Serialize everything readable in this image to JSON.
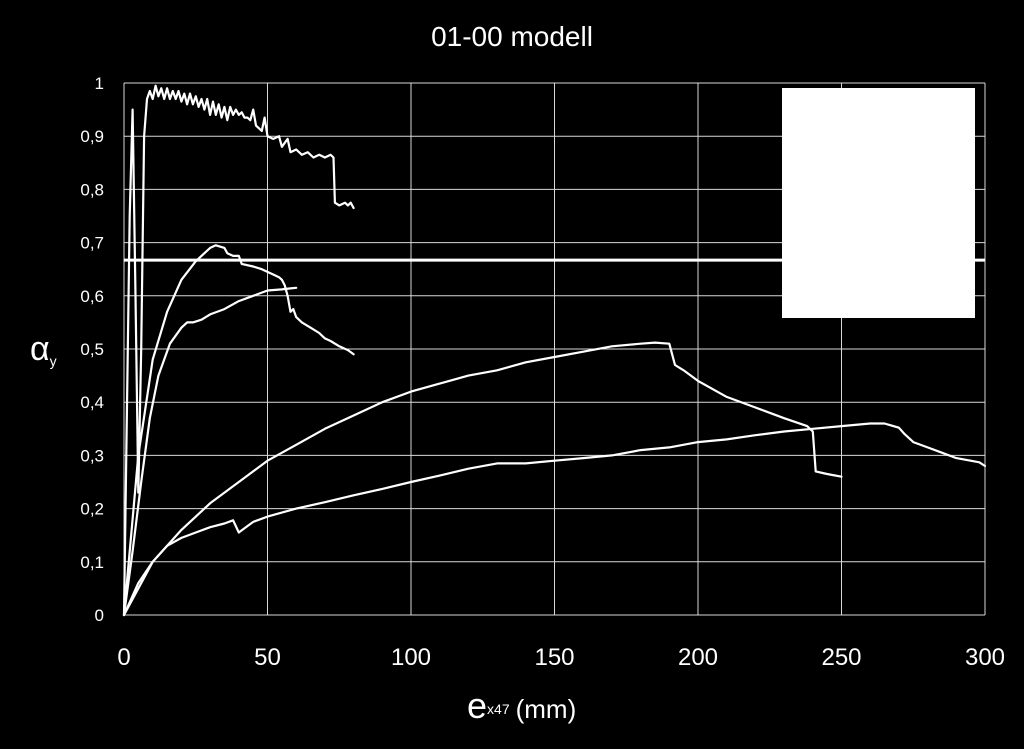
{
  "colors": {
    "background": "#000000",
    "foreground": "#ffffff",
    "grid": "#d9d9d9"
  },
  "chart_data": {
    "type": "line",
    "title": "01-00 modell",
    "xlabel": {
      "main": "e",
      "sub": "x47",
      "unit": "(mm)"
    },
    "ylabel": {
      "main": "α",
      "sub": "y"
    },
    "xlim": [
      0,
      300
    ],
    "ylim": [
      0,
      1
    ],
    "xticks": [
      0,
      50,
      100,
      150,
      200,
      250,
      300
    ],
    "yticks": [
      0,
      0.1,
      0.2,
      0.3,
      0.4,
      0.5,
      0.6,
      0.7,
      0.8,
      0.9,
      1
    ],
    "ytick_labels": [
      "0",
      "0,1",
      "0,2",
      "0,3",
      "0,4",
      "0,5",
      "0,6",
      "0,7",
      "0,8",
      "0,9",
      "1"
    ],
    "grid": true,
    "legend": "top-right (blank box)",
    "reference_line": {
      "y": 0.667
    },
    "series": [
      {
        "points": [
          [
            0,
            0
          ],
          [
            2,
            0.75
          ],
          [
            3,
            0.95
          ],
          [
            4,
            0.6
          ],
          [
            5,
            0.23
          ],
          [
            6,
            0.5
          ],
          [
            7,
            0.9
          ],
          [
            8,
            0.97
          ],
          [
            9,
            0.985
          ],
          [
            10,
            0.97
          ],
          [
            11,
            0.995
          ],
          [
            12,
            0.975
          ],
          [
            13,
            0.99
          ],
          [
            14,
            0.97
          ],
          [
            15,
            0.99
          ],
          [
            16,
            0.97
          ],
          [
            17,
            0.985
          ],
          [
            18,
            0.97
          ],
          [
            19,
            0.985
          ],
          [
            20,
            0.965
          ],
          [
            21,
            0.98
          ],
          [
            22,
            0.96
          ],
          [
            23,
            0.98
          ],
          [
            24,
            0.96
          ],
          [
            25,
            0.975
          ],
          [
            26,
            0.955
          ],
          [
            27,
            0.97
          ],
          [
            28,
            0.95
          ],
          [
            29,
            0.97
          ],
          [
            30,
            0.94
          ],
          [
            31,
            0.965
          ],
          [
            32,
            0.94
          ],
          [
            33,
            0.96
          ],
          [
            34,
            0.935
          ],
          [
            35,
            0.955
          ],
          [
            36,
            0.93
          ],
          [
            37,
            0.955
          ],
          [
            38,
            0.94
          ],
          [
            39,
            0.95
          ],
          [
            40,
            0.94
          ],
          [
            41,
            0.945
          ],
          [
            42,
            0.935
          ],
          [
            43,
            0.935
          ],
          [
            44,
            0.93
          ],
          [
            45,
            0.95
          ],
          [
            46,
            0.92
          ],
          [
            48,
            0.91
          ],
          [
            49,
            0.935
          ],
          [
            50,
            0.9
          ],
          [
            52,
            0.895
          ],
          [
            54,
            0.9
          ],
          [
            55,
            0.88
          ],
          [
            57,
            0.895
          ],
          [
            58,
            0.87
          ],
          [
            60,
            0.875
          ],
          [
            62,
            0.865
          ],
          [
            64,
            0.87
          ],
          [
            66,
            0.86
          ],
          [
            68,
            0.865
          ],
          [
            70,
            0.86
          ],
          [
            72,
            0.865
          ],
          [
            73,
            0.86
          ],
          [
            73.5,
            0.775
          ],
          [
            75,
            0.77
          ],
          [
            77,
            0.775
          ],
          [
            78,
            0.77
          ],
          [
            79,
            0.775
          ],
          [
            80,
            0.765
          ]
        ]
      },
      {
        "points": [
          [
            0,
            0
          ],
          [
            5,
            0.3
          ],
          [
            10,
            0.48
          ],
          [
            15,
            0.57
          ],
          [
            20,
            0.63
          ],
          [
            25,
            0.665
          ],
          [
            30,
            0.69
          ],
          [
            32,
            0.695
          ],
          [
            35,
            0.69
          ],
          [
            36,
            0.68
          ],
          [
            38,
            0.675
          ],
          [
            40,
            0.675
          ],
          [
            41,
            0.66
          ],
          [
            45,
            0.655
          ],
          [
            48,
            0.65
          ],
          [
            50,
            0.645
          ],
          [
            52,
            0.64
          ],
          [
            54,
            0.635
          ],
          [
            55,
            0.63
          ],
          [
            56,
            0.62
          ],
          [
            57,
            0.6
          ],
          [
            58,
            0.57
          ],
          [
            59,
            0.575
          ],
          [
            60,
            0.56
          ],
          [
            62,
            0.55
          ],
          [
            65,
            0.54
          ],
          [
            68,
            0.53
          ],
          [
            70,
            0.52
          ],
          [
            72,
            0.515
          ],
          [
            75,
            0.505
          ],
          [
            78,
            0.498
          ],
          [
            80,
            0.49
          ]
        ]
      },
      {
        "points": [
          [
            0,
            0
          ],
          [
            3,
            0.12
          ],
          [
            6,
            0.25
          ],
          [
            9,
            0.37
          ],
          [
            12,
            0.45
          ],
          [
            16,
            0.51
          ],
          [
            20,
            0.54
          ],
          [
            22,
            0.55
          ],
          [
            24,
            0.55
          ],
          [
            27,
            0.555
          ],
          [
            30,
            0.565
          ],
          [
            35,
            0.575
          ],
          [
            40,
            0.59
          ],
          [
            45,
            0.6
          ],
          [
            50,
            0.61
          ],
          [
            55,
            0.612
          ],
          [
            58,
            0.614
          ],
          [
            60,
            0.615
          ]
        ]
      },
      {
        "points": [
          [
            0,
            0
          ],
          [
            10,
            0.1
          ],
          [
            20,
            0.16
          ],
          [
            30,
            0.21
          ],
          [
            40,
            0.25
          ],
          [
            50,
            0.29
          ],
          [
            60,
            0.32
          ],
          [
            70,
            0.35
          ],
          [
            80,
            0.375
          ],
          [
            90,
            0.4
          ],
          [
            100,
            0.42
          ],
          [
            110,
            0.435
          ],
          [
            120,
            0.45
          ],
          [
            130,
            0.46
          ],
          [
            140,
            0.475
          ],
          [
            150,
            0.485
          ],
          [
            160,
            0.495
          ],
          [
            170,
            0.505
          ],
          [
            180,
            0.51
          ],
          [
            185,
            0.512
          ],
          [
            190,
            0.51
          ],
          [
            192,
            0.47
          ],
          [
            195,
            0.46
          ],
          [
            200,
            0.44
          ],
          [
            210,
            0.41
          ],
          [
            220,
            0.39
          ],
          [
            230,
            0.37
          ],
          [
            238,
            0.355
          ],
          [
            240,
            0.345
          ],
          [
            241,
            0.27
          ],
          [
            245,
            0.265
          ],
          [
            250,
            0.26
          ]
        ]
      },
      {
        "points": [
          [
            0,
            0
          ],
          [
            5,
            0.06
          ],
          [
            10,
            0.1
          ],
          [
            15,
            0.13
          ],
          [
            20,
            0.145
          ],
          [
            25,
            0.155
          ],
          [
            30,
            0.165
          ],
          [
            35,
            0.172
          ],
          [
            38,
            0.178
          ],
          [
            40,
            0.155
          ],
          [
            42,
            0.163
          ],
          [
            45,
            0.175
          ],
          [
            50,
            0.185
          ],
          [
            60,
            0.2
          ],
          [
            70,
            0.212
          ],
          [
            80,
            0.225
          ],
          [
            90,
            0.237
          ],
          [
            100,
            0.25
          ],
          [
            110,
            0.262
          ],
          [
            120,
            0.275
          ],
          [
            130,
            0.285
          ],
          [
            140,
            0.285
          ],
          [
            150,
            0.29
          ],
          [
            160,
            0.295
          ],
          [
            170,
            0.3
          ],
          [
            180,
            0.31
          ],
          [
            190,
            0.315
          ],
          [
            200,
            0.325
          ],
          [
            210,
            0.33
          ],
          [
            220,
            0.338
          ],
          [
            230,
            0.345
          ],
          [
            240,
            0.35
          ],
          [
            250,
            0.355
          ],
          [
            260,
            0.36
          ],
          [
            265,
            0.36
          ],
          [
            270,
            0.352
          ],
          [
            272,
            0.34
          ],
          [
            275,
            0.325
          ],
          [
            280,
            0.315
          ],
          [
            285,
            0.305
          ],
          [
            290,
            0.295
          ],
          [
            295,
            0.29
          ],
          [
            298,
            0.287
          ],
          [
            300,
            0.28
          ]
        ]
      }
    ]
  }
}
